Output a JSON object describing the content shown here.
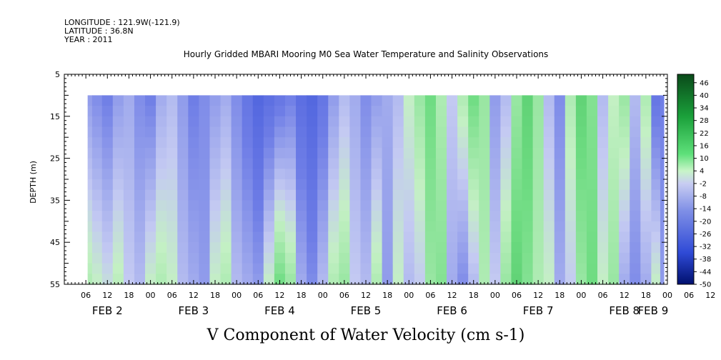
{
  "header": {
    "longitude": "LONGITUDE : 121.9W(-121.9)",
    "latitude": "LATITUDE : 36.8N",
    "year": "YEAR : 2011"
  },
  "chart_data": {
    "type": "heatmap",
    "title": "Hourly Gridded MBARI Mooring M0 Sea Water Temperature and Salinity Observations",
    "xlabel": "",
    "ylabel": "DEPTH (m)",
    "colorbar_label": "V Component of Water Velocity (cm s-1)",
    "y_axis": {
      "ticks": [
        5,
        15,
        25,
        35,
        45,
        55
      ],
      "ylim": [
        5,
        55
      ],
      "inverted": true
    },
    "x_axis": {
      "xlim_hours": [
        0,
        168
      ],
      "hour_tick_labels": [
        "06",
        "12",
        "18",
        "00",
        "06",
        "12",
        "18",
        "00",
        "06",
        "12",
        "18",
        "00",
        "06",
        "12",
        "18",
        "00",
        "06",
        "12",
        "18",
        "00",
        "06",
        "12",
        "18",
        "00",
        "06",
        "12",
        "18",
        "00",
        "06",
        "12",
        "18",
        "00"
      ],
      "day_labels": [
        {
          "label": "FEB  2",
          "hour": 12
        },
        {
          "label": "FEB  3",
          "hour": 36
        },
        {
          "label": "FEB  4",
          "hour": 60
        },
        {
          "label": "FEB  5",
          "hour": 84
        },
        {
          "label": "FEB  6",
          "hour": 108
        },
        {
          "label": "FEB  7",
          "hour": 132
        },
        {
          "label": "FEB  8",
          "hour": 156
        },
        {
          "label": "FEB  9",
          "hour": 164
        }
      ]
    },
    "data_extent": {
      "x_start_hour": 6.5,
      "x_end_hour": 167,
      "depth_top": 10,
      "depth_bottom": 55
    },
    "colorbar": {
      "tick_labels": [
        "46",
        "40",
        "34",
        "28",
        "22",
        "16",
        "10",
        "4",
        "-2",
        "-8",
        "-14",
        "-20",
        "-26",
        "-32",
        "-38",
        "-44",
        "-50"
      ],
      "range": [
        -50,
        50
      ]
    },
    "columns": [
      {
        "h": 6.5,
        "top": -8,
        "bot": 4
      },
      {
        "h": 9,
        "top": -10,
        "bot": 2
      },
      {
        "h": 12,
        "top": -12,
        "bot": 0
      },
      {
        "h": 15,
        "top": -8,
        "bot": 3
      },
      {
        "h": 18,
        "top": -6,
        "bot": -2
      },
      {
        "h": 21,
        "top": -10,
        "bot": -4
      },
      {
        "h": 24,
        "top": -12,
        "bot": 2
      },
      {
        "h": 27,
        "top": -6,
        "bot": 4
      },
      {
        "h": 30,
        "top": -4,
        "bot": 2
      },
      {
        "h": 33,
        "top": -8,
        "bot": -4
      },
      {
        "h": 36,
        "top": -12,
        "bot": -6
      },
      {
        "h": 39,
        "top": -10,
        "bot": -8
      },
      {
        "h": 42,
        "top": -8,
        "bot": 2
      },
      {
        "h": 45,
        "top": -6,
        "bot": 4
      },
      {
        "h": 48,
        "top": -10,
        "bot": -4
      },
      {
        "h": 51,
        "top": -14,
        "bot": -6
      },
      {
        "h": 54,
        "top": -18,
        "bot": -8
      },
      {
        "h": 57,
        "top": -16,
        "bot": 2
      },
      {
        "h": 60,
        "top": -14,
        "bot": 10
      },
      {
        "h": 63,
        "top": -12,
        "bot": 6
      },
      {
        "h": 66,
        "top": -16,
        "bot": -6
      },
      {
        "h": 69,
        "top": -18,
        "bot": -10
      },
      {
        "h": 72,
        "top": -14,
        "bot": -4
      },
      {
        "h": 75,
        "top": -8,
        "bot": 4
      },
      {
        "h": 78,
        "top": -4,
        "bot": 6
      },
      {
        "h": 81,
        "top": -6,
        "bot": -2
      },
      {
        "h": 84,
        "top": -10,
        "bot": -4
      },
      {
        "h": 87,
        "top": -8,
        "bot": 4
      },
      {
        "h": 90,
        "top": -6,
        "bot": -8
      },
      {
        "h": 93,
        "top": -4,
        "bot": 2
      },
      {
        "h": 96,
        "top": 2,
        "bot": -4
      },
      {
        "h": 99,
        "top": 6,
        "bot": -2
      },
      {
        "h": 102,
        "top": 10,
        "bot": 6
      },
      {
        "h": 105,
        "top": 4,
        "bot": 8
      },
      {
        "h": 108,
        "top": -2,
        "bot": -6
      },
      {
        "h": 111,
        "top": 4,
        "bot": -10
      },
      {
        "h": 114,
        "top": 10,
        "bot": -4
      },
      {
        "h": 117,
        "top": 6,
        "bot": 4
      },
      {
        "h": 120,
        "top": -8,
        "bot": -2
      },
      {
        "h": 123,
        "top": -4,
        "bot": 6
      },
      {
        "h": 126,
        "top": 6,
        "bot": 12
      },
      {
        "h": 129,
        "top": 12,
        "bot": 8
      },
      {
        "h": 132,
        "top": 6,
        "bot": 4
      },
      {
        "h": 135,
        "top": -4,
        "bot": 2
      },
      {
        "h": 138,
        "top": -10,
        "bot": -6
      },
      {
        "h": 141,
        "top": 4,
        "bot": -2
      },
      {
        "h": 144,
        "top": 12,
        "bot": 6
      },
      {
        "h": 147,
        "top": 8,
        "bot": 10
      },
      {
        "h": 150,
        "top": -4,
        "bot": 2
      },
      {
        "h": 153,
        "top": 2,
        "bot": 6
      },
      {
        "h": 156,
        "top": 6,
        "bot": -6
      },
      {
        "h": 159,
        "top": -4,
        "bot": -10
      },
      {
        "h": 162,
        "top": 4,
        "bot": -6
      },
      {
        "h": 165,
        "top": -14,
        "bot": 2
      },
      {
        "h": 167,
        "top": -12,
        "bot": -8
      }
    ]
  }
}
